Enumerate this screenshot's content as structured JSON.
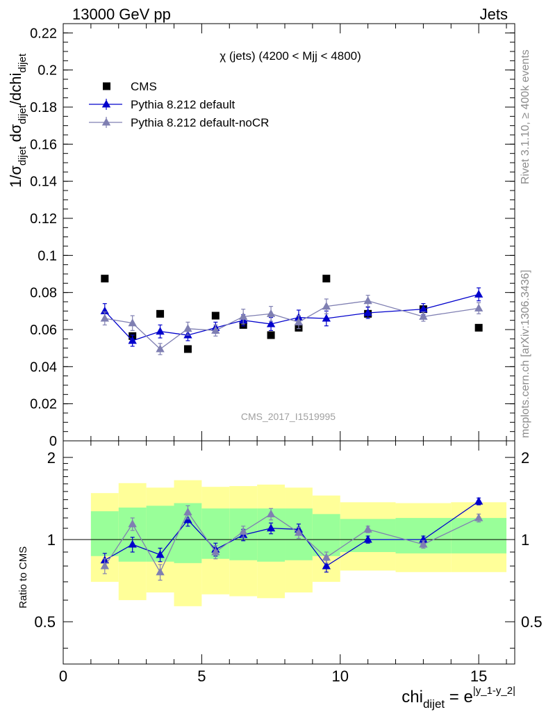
{
  "header": {
    "left": "13000 GeV pp",
    "right": "Jets"
  },
  "sidebar": {
    "rivet": "Rivet 3.1.10, ≥ 400k events",
    "mcplots": "mcplots.cern.ch [arXiv:1306.3436]"
  },
  "watermark": "CMS_2017_I1519995",
  "chart_data": {
    "type": "scatter",
    "title": "χ (jets) (4200 < Mjj < 4800)",
    "xlabel": "chi_dijet = e^|y_1-y_2|",
    "ylabel": "1/σ_dijet dσ_dijet/dchi_dijet",
    "xlim": [
      0,
      16.3
    ],
    "ylim": [
      0,
      0.225
    ],
    "xticks": [
      "0",
      "5",
      "10",
      "15"
    ],
    "yticks": [
      "0",
      "0.02",
      "0.04",
      "0.06",
      "0.08",
      "0.1",
      "0.12",
      "0.14",
      "0.16",
      "0.18",
      "0.2",
      "0.22"
    ],
    "legend_position": "top-left",
    "bins": [
      [
        1,
        2
      ],
      [
        2,
        3
      ],
      [
        3,
        4
      ],
      [
        4,
        5
      ],
      [
        5,
        6
      ],
      [
        6,
        7
      ],
      [
        7,
        8
      ],
      [
        8,
        9
      ],
      [
        9,
        10
      ],
      [
        10,
        12
      ],
      [
        12,
        14
      ],
      [
        14,
        16
      ]
    ],
    "x": [
      1.5,
      2.5,
      3.5,
      4.5,
      5.5,
      6.5,
      7.5,
      8.5,
      9.5,
      11,
      13,
      15
    ],
    "series": [
      {
        "name": "CMS",
        "marker": "square",
        "color": "#000000",
        "values": [
          0.0875,
          0.0565,
          0.0685,
          0.0495,
          0.0675,
          0.0625,
          0.057,
          0.061,
          0.0875,
          0.0685,
          0.071,
          0.061
        ]
      },
      {
        "name": "Pythia 8.212 default",
        "marker": "triangle",
        "color": "#0000cc",
        "values": [
          0.07,
          0.054,
          0.059,
          0.057,
          0.061,
          0.065,
          0.063,
          0.0665,
          0.066,
          0.069,
          0.071,
          0.079
        ],
        "errors": [
          0.004,
          0.003,
          0.0035,
          0.003,
          0.003,
          0.003,
          0.0035,
          0.004,
          0.004,
          0.003,
          0.003,
          0.0035
        ]
      },
      {
        "name": "Pythia 8.212 default-noCR",
        "marker": "triangle",
        "color": "#7f7fb2",
        "values": [
          0.066,
          0.0635,
          0.0495,
          0.0605,
          0.0595,
          0.067,
          0.0685,
          0.064,
          0.0725,
          0.0755,
          0.067,
          0.0715
        ],
        "errors": [
          0.0035,
          0.004,
          0.003,
          0.0035,
          0.003,
          0.004,
          0.004,
          0.0035,
          0.004,
          0.003,
          0.0025,
          0.003
        ]
      }
    ],
    "ratio": {
      "ylabel": "Ratio to CMS",
      "ylim": [
        0.35,
        2.3
      ],
      "yticks": [
        "0.5",
        "1",
        "2"
      ],
      "reference": 1,
      "band_colors": {
        "inner": "#99ff99",
        "outer": "#ffff99"
      },
      "inner_band": [
        [
          0.87,
          1.27
        ],
        [
          0.83,
          1.31
        ],
        [
          0.83,
          1.33
        ],
        [
          0.82,
          1.36
        ],
        [
          0.85,
          1.3
        ],
        [
          0.84,
          1.3
        ],
        [
          0.83,
          1.3
        ],
        [
          0.84,
          1.3
        ],
        [
          0.87,
          1.24
        ],
        [
          0.9,
          1.19
        ],
        [
          0.89,
          1.2
        ],
        [
          0.89,
          1.2
        ]
      ],
      "outer_band": [
        [
          0.7,
          1.48
        ],
        [
          0.6,
          1.61
        ],
        [
          0.64,
          1.55
        ],
        [
          0.57,
          1.65
        ],
        [
          0.63,
          1.56
        ],
        [
          0.62,
          1.57
        ],
        [
          0.61,
          1.59
        ],
        [
          0.64,
          1.55
        ],
        [
          0.7,
          1.45
        ],
        [
          0.77,
          1.37
        ],
        [
          0.76,
          1.36
        ],
        [
          0.76,
          1.37
        ]
      ],
      "series": [
        {
          "name": "Pythia 8.212 default",
          "color": "#0000cc",
          "values": [
            0.84,
            0.96,
            0.88,
            1.18,
            0.92,
            1.04,
            1.1,
            1.09,
            0.8,
            1.0,
            1.0,
            1.38
          ],
          "errors": [
            0.05,
            0.06,
            0.05,
            0.06,
            0.05,
            0.05,
            0.05,
            0.05,
            0.04,
            0.03,
            0.03,
            0.04
          ]
        },
        {
          "name": "Pythia 8.212 default-noCR",
          "color": "#7f7fb2",
          "values": [
            0.8,
            1.14,
            0.76,
            1.26,
            0.9,
            1.07,
            1.24,
            1.06,
            0.86,
            1.09,
            0.96,
            1.2
          ],
          "errors": [
            0.05,
            0.06,
            0.05,
            0.07,
            0.05,
            0.05,
            0.06,
            0.05,
            0.04,
            0.03,
            0.03,
            0.04
          ]
        }
      ]
    }
  }
}
